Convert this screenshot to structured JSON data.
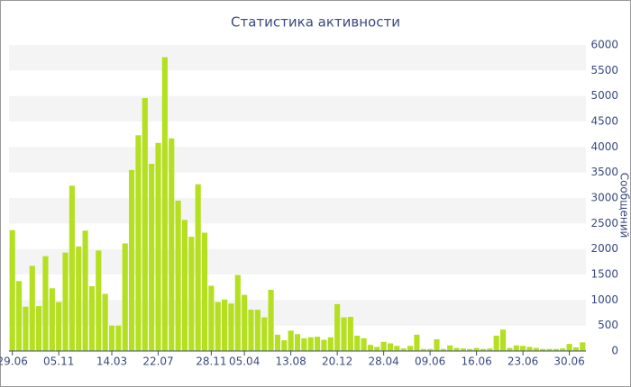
{
  "chart_data": {
    "type": "bar",
    "title": "Статистика активности",
    "y_label": "Сообщений",
    "categories": [
      "29.06",
      null,
      null,
      null,
      null,
      null,
      null,
      "05.11",
      null,
      null,
      null,
      null,
      null,
      null,
      null,
      "14.03",
      null,
      null,
      null,
      null,
      null,
      null,
      "22.07",
      null,
      null,
      null,
      null,
      null,
      null,
      null,
      "28.11",
      null,
      null,
      null,
      null,
      "05.04",
      null,
      null,
      null,
      null,
      null,
      null,
      "13.08",
      null,
      null,
      null,
      null,
      null,
      null,
      "20.12",
      null,
      null,
      null,
      null,
      null,
      null,
      "28.04",
      null,
      null,
      null,
      null,
      null,
      null,
      "09.06",
      null,
      null,
      null,
      null,
      null,
      null,
      "16.06",
      null,
      null,
      null,
      null,
      null,
      null,
      "23.06",
      null,
      null,
      null,
      null,
      null,
      null,
      "30.06",
      null,
      null
    ],
    "values": [
      2370,
      1370,
      870,
      1670,
      880,
      1860,
      1230,
      960,
      1930,
      3240,
      2050,
      2360,
      1270,
      1970,
      1120,
      500,
      500,
      2110,
      3550,
      4230,
      4960,
      3670,
      4080,
      5760,
      4170,
      2950,
      2570,
      2240,
      3270,
      2320,
      1280,
      960,
      1010,
      930,
      1490,
      1100,
      810,
      810,
      660,
      1200,
      320,
      210,
      400,
      330,
      250,
      270,
      280,
      220,
      270,
      920,
      660,
      670,
      300,
      250,
      120,
      80,
      180,
      150,
      100,
      50,
      100,
      320,
      40,
      40,
      230,
      40,
      110,
      60,
      50,
      40,
      60,
      40,
      50,
      300,
      420,
      60,
      110,
      100,
      80,
      60,
      40,
      40,
      40,
      50,
      140,
      70,
      170
    ],
    "color": "#b5e020",
    "ylim": [
      0,
      6000
    ],
    "yticks": [
      0,
      500,
      1000,
      1500,
      2000,
      2500,
      3000,
      3500,
      4000,
      4500,
      5000,
      5500,
      6000
    ],
    "grid": true
  }
}
